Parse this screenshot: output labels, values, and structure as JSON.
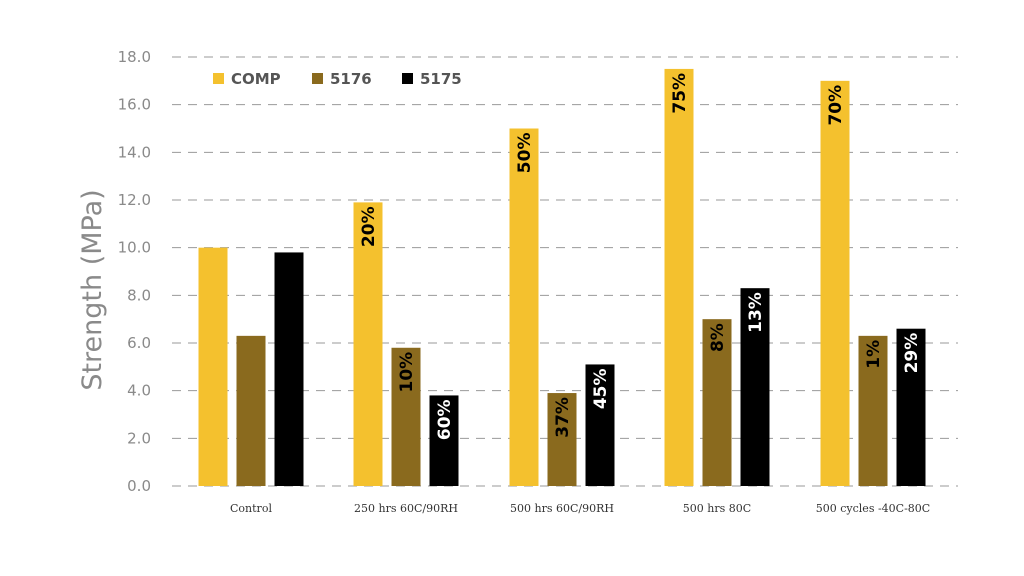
{
  "chart_data": {
    "type": "bar",
    "title": "",
    "xlabel": "",
    "ylabel": "Strength (MPa)",
    "ylim": [
      0,
      18
    ],
    "y_ticks": [
      "0.0",
      "2.0",
      "4.0",
      "6.0",
      "8.0",
      "10.0",
      "12.0",
      "14.0",
      "16.0",
      "18.0"
    ],
    "grid": "horizontal dashed",
    "legend_position": "top-left",
    "categories": [
      "Control",
      "250 hrs 60C/90RH",
      "500 hrs 60C/90RH",
      "500 hrs 80C",
      "500 cycles -40C-80C"
    ],
    "series": [
      {
        "name": "COMP",
        "color": "#F4C12E",
        "label_color": "#000000",
        "values": [
          10.0,
          11.9,
          15.0,
          17.5,
          17.0
        ],
        "labels": [
          "",
          "20%",
          "50%",
          "75%",
          "70%"
        ]
      },
      {
        "name": "5176",
        "color": "#8A6A1E",
        "label_color": "#000000",
        "values": [
          6.3,
          5.8,
          3.9,
          7.0,
          6.3
        ],
        "labels": [
          "",
          "10%",
          "37%",
          "8%",
          "1%"
        ]
      },
      {
        "name": "5175",
        "color": "#000000",
        "label_color": "#ffffff",
        "values": [
          9.8,
          3.8,
          5.1,
          8.3,
          6.6
        ],
        "labels": [
          "",
          "60%",
          "45%",
          "13%",
          "29%"
        ]
      }
    ]
  }
}
